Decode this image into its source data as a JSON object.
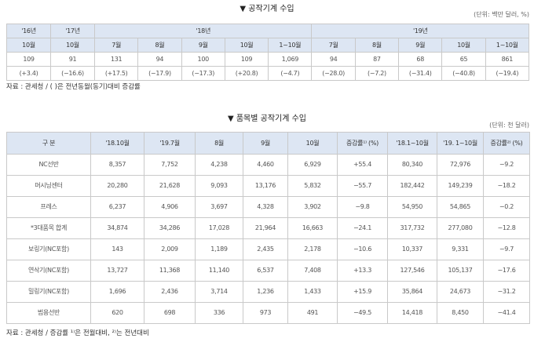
{
  "table1": {
    "title": "▼ 공작기계 수입",
    "unit": "(단위: 백만 달러, %)",
    "years": [
      "'16년",
      "'17년",
      "'18년",
      "'19년"
    ],
    "months": [
      "10월",
      "10월",
      "7월",
      "8월",
      "9월",
      "10월",
      "1~10월",
      "7월",
      "8월",
      "9월",
      "10월",
      "1~10월"
    ],
    "values": [
      "109",
      "91",
      "131",
      "94",
      "100",
      "109",
      "1,069",
      "94",
      "87",
      "68",
      "65",
      "861"
    ],
    "changes": [
      "(+3.4)",
      "(−16.6)",
      "(+17.5)",
      "(−17.9)",
      "(−17.3)",
      "(+20.8)",
      "(−4.7)",
      "(−28.0)",
      "(−7.2)",
      "(−31.4)",
      "(−40.8)",
      "(−19.4)"
    ],
    "note": "자료 : 관세청 / (   )은 전년동월(동기)대비 증감률"
  },
  "table2": {
    "title": "▼ 품목별 공작기계 수입",
    "unit": "(단위: 천 달러)",
    "headers": [
      "구 분",
      "'18.10월",
      "'19.7월",
      "8월",
      "9월",
      "10월",
      "증감률¹⁾ (%)",
      "'18.1~10월",
      "'19. 1~10월",
      "증감률²⁾ (%)"
    ],
    "rows": [
      [
        "NC선반",
        "8,357",
        "7,752",
        "4,238",
        "4,460",
        "6,929",
        "+55.4",
        "80,340",
        "72,976",
        "−9.2"
      ],
      [
        "머시닝센터",
        "20,280",
        "21,628",
        "9,093",
        "13,176",
        "5,832",
        "−55.7",
        "182,442",
        "149,239",
        "−18.2"
      ],
      [
        "프레스",
        "6,237",
        "4,906",
        "3,697",
        "4,328",
        "3,902",
        "−9.8",
        "54,950",
        "54,865",
        "−0.2"
      ],
      [
        "*3대품목 합계",
        "34,874",
        "34,286",
        "17,028",
        "21,964",
        "16,663",
        "−24.1",
        "317,732",
        "277,080",
        "−12.8"
      ],
      [
        "보링기(NC포함)",
        "143",
        "2,009",
        "1,189",
        "2,435",
        "2,178",
        "−10.6",
        "10,337",
        "9,331",
        "−9.7"
      ],
      [
        "연삭기(NC포함)",
        "13,727",
        "11,368",
        "11,140",
        "6,537",
        "7,408",
        "+13.3",
        "127,546",
        "105,137",
        "−17.6"
      ],
      [
        "밀링기(NC포함)",
        "1,696",
        "2,436",
        "3,714",
        "1,236",
        "1,433",
        "+15.9",
        "35,864",
        "24,673",
        "−31.2"
      ],
      [
        "범용선반",
        "620",
        "698",
        "336",
        "973",
        "491",
        "−49.5",
        "14,418",
        "8,450",
        "−41.4"
      ]
    ],
    "note": "자료 : 관세청  / 증감률 ¹⁾은 전월대비, ²⁾는 전년대비"
  }
}
